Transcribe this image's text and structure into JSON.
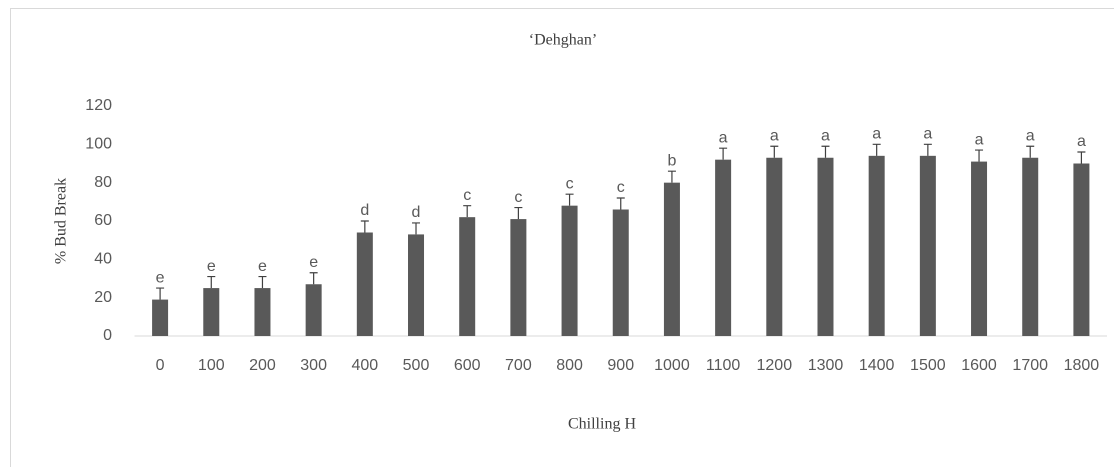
{
  "chart_data": {
    "type": "bar",
    "title": "‘Dehghan’",
    "x_label": "Chilling H",
    "y_label": "% Bud Break",
    "categories": [
      "0",
      "100",
      "200",
      "300",
      "400",
      "500",
      "600",
      "700",
      "800",
      "900",
      "1000",
      "1100",
      "1200",
      "1300",
      "1400",
      "1500",
      "1600",
      "1700",
      "1800"
    ],
    "values": [
      19,
      25,
      25,
      27,
      54,
      53,
      62,
      61,
      68,
      66,
      80,
      92,
      93,
      93,
      94,
      94,
      91,
      93,
      90
    ],
    "errors": [
      6,
      6,
      6,
      6,
      6,
      6,
      6,
      6,
      6,
      6,
      6,
      6,
      6,
      6,
      6,
      6,
      6,
      6,
      6
    ],
    "annotations": [
      "e",
      "e",
      "e",
      "e",
      "d",
      "d",
      "c",
      "c",
      "c",
      "c",
      "b",
      "a",
      "a",
      "a",
      "a",
      "a",
      "a",
      "a",
      "a"
    ],
    "color": "#595959",
    "ylim": [
      0,
      120
    ],
    "yticks": [
      0,
      20,
      40,
      60,
      80,
      100,
      120
    ],
    "grid": false
  }
}
